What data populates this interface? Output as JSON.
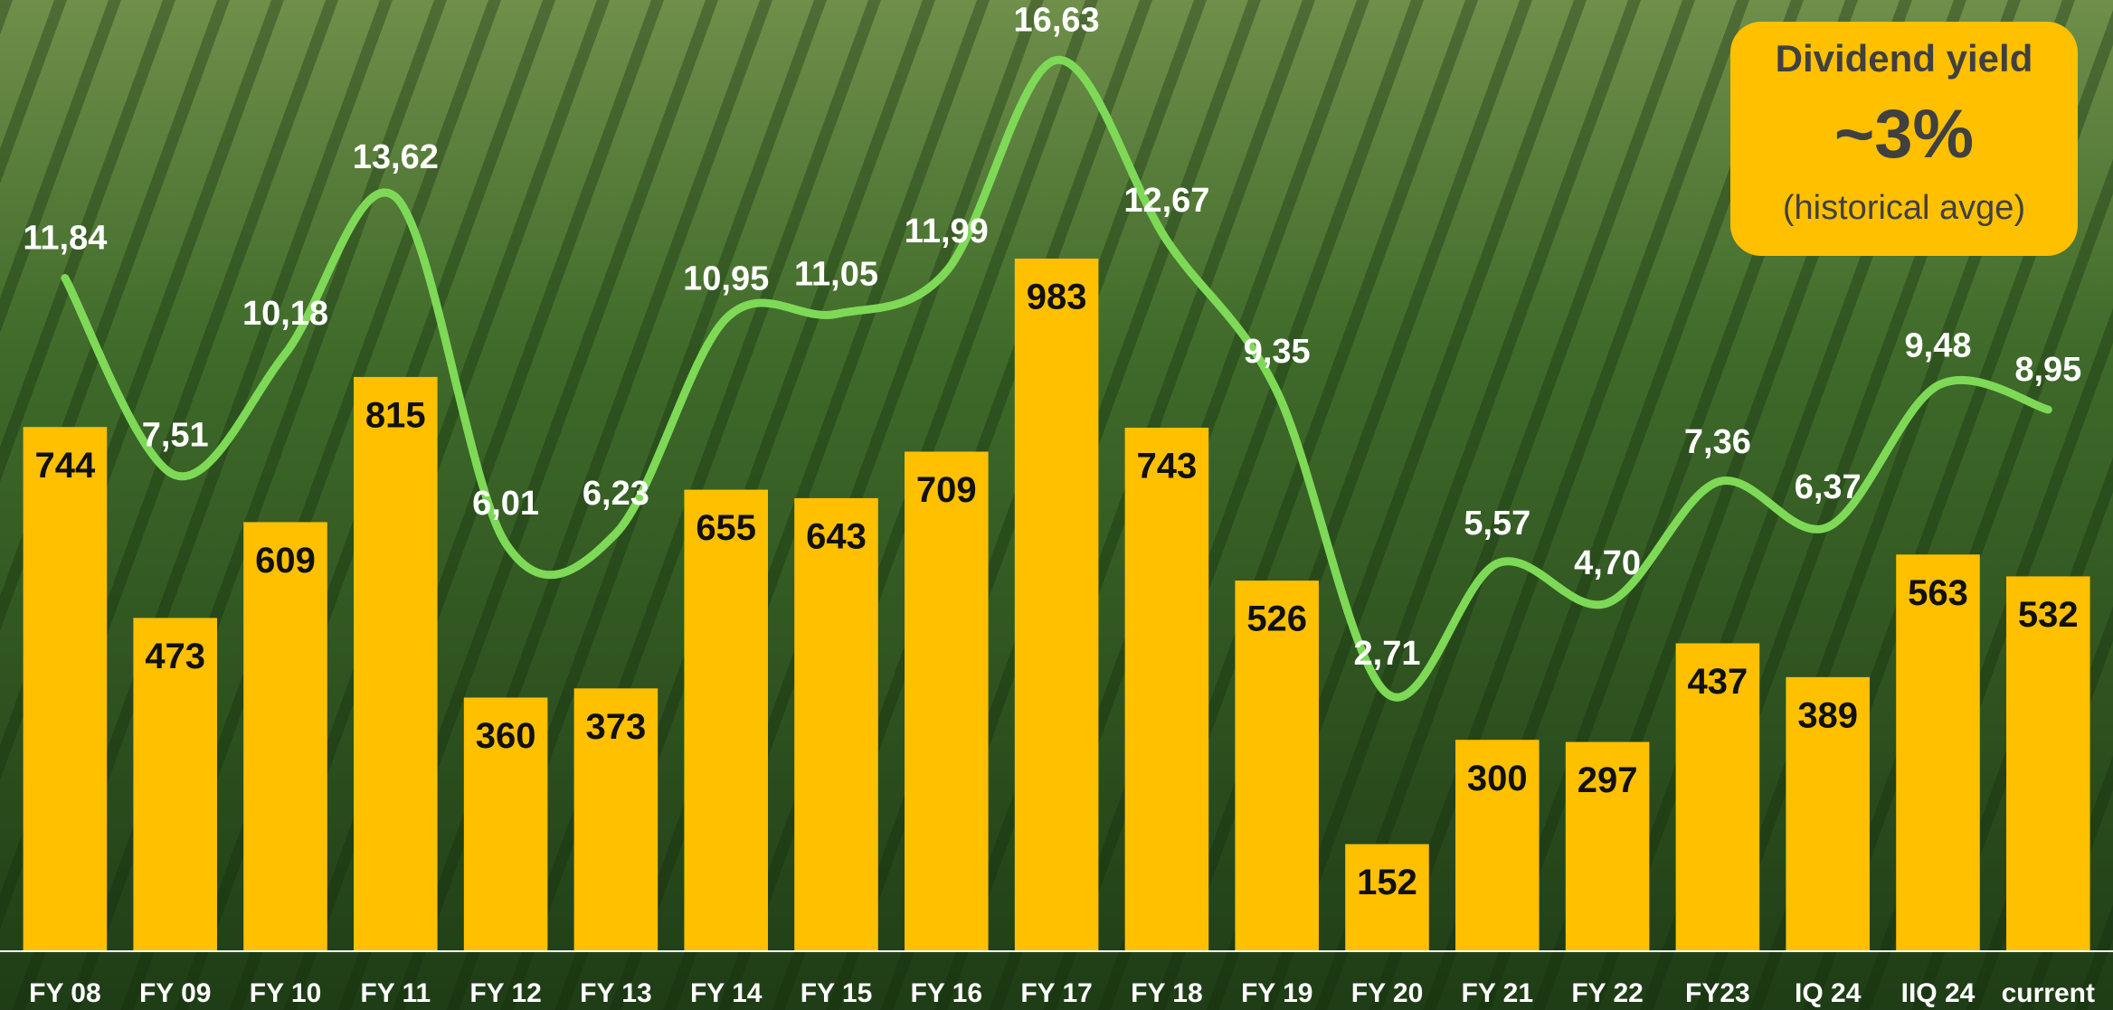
{
  "chart_data": {
    "type": "bar",
    "categories": [
      "FY 08",
      "FY 09",
      "FY 10",
      "FY 11",
      "FY 12",
      "FY 13",
      "FY 14",
      "FY 15",
      "FY 16",
      "FY 17",
      "FY 18",
      "FY 19",
      "FY 20",
      "FY 21",
      "FY 22",
      "FY23",
      "IQ 24",
      "IIQ 24",
      "current"
    ],
    "series": [
      {
        "type": "bar",
        "color": "#ffc000",
        "values": [
          744,
          473,
          609,
          815,
          360,
          373,
          655,
          643,
          709,
          983,
          743,
          526,
          152,
          300,
          297,
          437,
          389,
          563,
          532
        ]
      },
      {
        "type": "line",
        "axis": "y2",
        "color": "#7ed957",
        "values": [
          11.84,
          7.51,
          10.18,
          13.62,
          6.01,
          6.23,
          10.95,
          11.05,
          11.99,
          16.63,
          12.67,
          9.35,
          2.71,
          5.57,
          4.7,
          7.36,
          6.37,
          9.48,
          8.95
        ],
        "value_labels": [
          "11,84",
          "7,51",
          "10,18",
          "13,62",
          "6,01",
          "6,23",
          "10,95",
          "11,05",
          "11,99",
          "16,63",
          "12,67",
          "9,35",
          "2,71",
          "5,57",
          "4,70",
          "7,36",
          "6,37",
          "9,48",
          "8,95"
        ]
      }
    ],
    "ylim": [
      0,
      1350
    ],
    "y2lim": [
      -2.95,
      17.95
    ],
    "annotation": {
      "title": "Dividend yield",
      "value": "~3%",
      "note": "(historical avge)"
    }
  }
}
